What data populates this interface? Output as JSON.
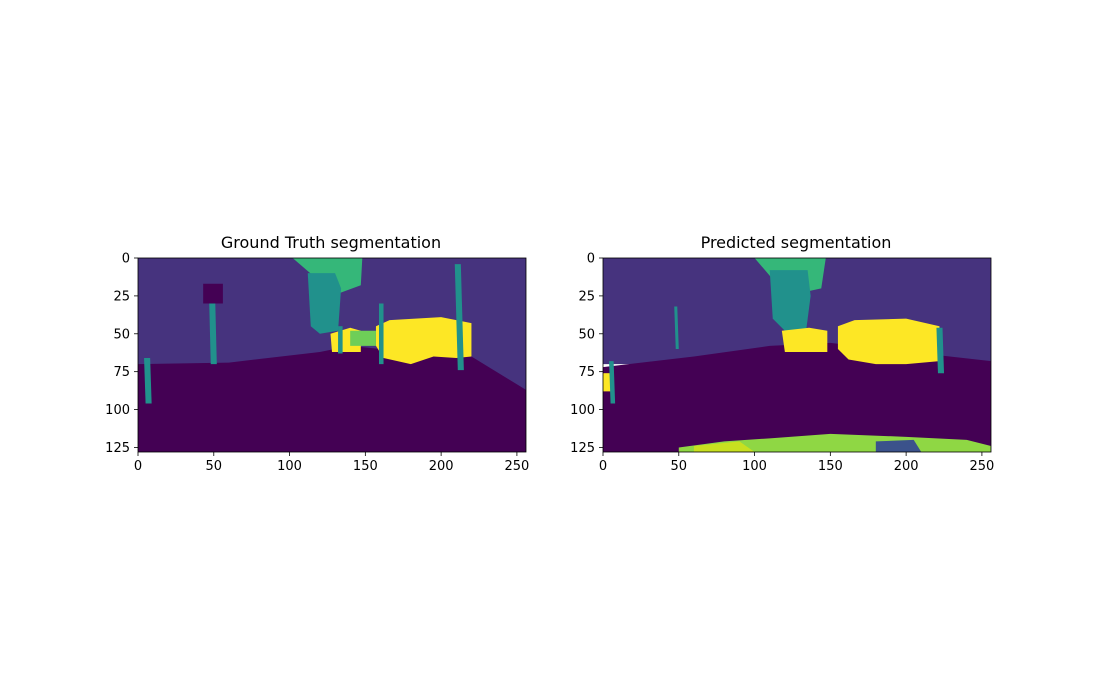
{
  "chart_data": [
    {
      "type": "heatmap",
      "title": "Ground Truth segmentation",
      "xlabel": "",
      "ylabel": "",
      "xlim": [
        0,
        256
      ],
      "ylim": [
        128,
        0
      ],
      "xticks": [
        0,
        50,
        100,
        150,
        200,
        250
      ],
      "yticks": [
        0,
        25,
        50,
        75,
        100,
        125
      ],
      "xtick_labels": [
        "0",
        "50",
        "100",
        "150",
        "200",
        "250"
      ],
      "ytick_labels": [
        "0",
        "25",
        "50",
        "75",
        "100",
        "125"
      ],
      "regions": [
        {
          "label": "sky",
          "color": "#46337e",
          "points": [
            [
              0,
              0
            ],
            [
              256,
              0
            ],
            [
              256,
              87
            ],
            [
              0,
              87
            ]
          ]
        },
        {
          "label": "ground",
          "color": "#440154",
          "points": [
            [
              0,
              70
            ],
            [
              60,
              69
            ],
            [
              120,
              62
            ],
            [
              140,
              58
            ],
            [
              160,
              60
            ],
            [
              220,
              65
            ],
            [
              256,
              87
            ],
            [
              256,
              128
            ],
            [
              0,
              128
            ]
          ]
        },
        {
          "label": "canopy",
          "color": "#35b779",
          "points": [
            [
              102,
              0
            ],
            [
              148,
              0
            ],
            [
              147,
              18
            ],
            [
              128,
              25
            ],
            [
              116,
              12
            ]
          ]
        },
        {
          "label": "trunk",
          "color": "#21918c",
          "points": [
            [
              112,
              10
            ],
            [
              130,
              10
            ],
            [
              134,
              20
            ],
            [
              132,
              48
            ],
            [
              120,
              50
            ],
            [
              114,
              45
            ]
          ]
        },
        {
          "label": "dark-patch",
          "color": "#440154",
          "points": [
            [
              43,
              17
            ],
            [
              56,
              17
            ],
            [
              56,
              30
            ],
            [
              43,
              30
            ]
          ]
        },
        {
          "label": "car-main",
          "color": "#fde725",
          "points": [
            [
              157,
              45
            ],
            [
              166,
              41
            ],
            [
              200,
              39
            ],
            [
              220,
              43
            ],
            [
              220,
              65
            ],
            [
              210,
              66
            ],
            [
              195,
              65
            ],
            [
              180,
              70
            ],
            [
              162,
              66
            ],
            [
              157,
              58
            ]
          ]
        },
        {
          "label": "car-small",
          "color": "#fde725",
          "points": [
            [
              127,
              50
            ],
            [
              140,
              46
            ],
            [
              147,
              48
            ],
            [
              147,
              62
            ],
            [
              128,
              62
            ]
          ]
        },
        {
          "label": "bush",
          "color": "#6ece58",
          "points": [
            [
              140,
              48
            ],
            [
              157,
              48
            ],
            [
              157,
              58
            ],
            [
              140,
              58
            ]
          ]
        },
        {
          "label": "pole-right",
          "color": "#21918c",
          "points": [
            [
              209,
              4
            ],
            [
              213,
              4
            ],
            [
              215,
              74
            ],
            [
              211,
              74
            ]
          ]
        },
        {
          "label": "pole-left",
          "color": "#21918c",
          "points": [
            [
              47,
              30
            ],
            [
              51,
              30
            ],
            [
              52,
              70
            ],
            [
              48,
              70
            ]
          ]
        },
        {
          "label": "pole-near",
          "color": "#21918c",
          "points": [
            [
              4,
              66
            ],
            [
              8,
              66
            ],
            [
              9,
              96
            ],
            [
              5,
              96
            ]
          ]
        },
        {
          "label": "pole-mid",
          "color": "#21918c",
          "points": [
            [
              159,
              30
            ],
            [
              162,
              30
            ],
            [
              162,
              70
            ],
            [
              159,
              70
            ]
          ]
        },
        {
          "label": "pole-center",
          "color": "#21918c",
          "points": [
            [
              132,
              45
            ],
            [
              135,
              45
            ],
            [
              135,
              63
            ],
            [
              132,
              63
            ]
          ]
        }
      ]
    },
    {
      "type": "heatmap",
      "title": "Predicted segmentation",
      "xlabel": "",
      "ylabel": "",
      "xlim": [
        0,
        256
      ],
      "ylim": [
        128,
        0
      ],
      "xticks": [
        0,
        50,
        100,
        150,
        200,
        250
      ],
      "yticks": [
        0,
        25,
        50,
        75,
        100,
        125
      ],
      "xtick_labels": [
        "0",
        "50",
        "100",
        "150",
        "200",
        "250"
      ],
      "ytick_labels": [
        "0",
        "25",
        "50",
        "75",
        "100",
        "125"
      ],
      "regions": [
        {
          "label": "sky",
          "color": "#46337e",
          "points": [
            [
              0,
              0
            ],
            [
              256,
              0
            ],
            [
              256,
              70
            ],
            [
              0,
              70
            ]
          ]
        },
        {
          "label": "ground",
          "color": "#440154",
          "points": [
            [
              0,
              72
            ],
            [
              60,
              65
            ],
            [
              110,
              58
            ],
            [
              150,
              56
            ],
            [
              220,
              64
            ],
            [
              256,
              68
            ],
            [
              256,
              128
            ],
            [
              0,
              128
            ]
          ]
        },
        {
          "label": "canopy",
          "color": "#35b779",
          "points": [
            [
              100,
              0
            ],
            [
              147,
              0
            ],
            [
              144,
              20
            ],
            [
              126,
              24
            ],
            [
              112,
              14
            ]
          ]
        },
        {
          "label": "trunk",
          "color": "#21918c",
          "points": [
            [
              110,
              8
            ],
            [
              135,
              8
            ],
            [
              137,
              25
            ],
            [
              134,
              48
            ],
            [
              120,
              48
            ],
            [
              112,
              40
            ]
          ]
        },
        {
          "label": "car-main",
          "color": "#fde725",
          "points": [
            [
              155,
              45
            ],
            [
              166,
              41
            ],
            [
              200,
              40
            ],
            [
              222,
              45
            ],
            [
              222,
              68
            ],
            [
              200,
              70
            ],
            [
              180,
              70
            ],
            [
              162,
              67
            ],
            [
              155,
              60
            ]
          ]
        },
        {
          "label": "car-small",
          "color": "#fde725",
          "points": [
            [
              118,
              48
            ],
            [
              136,
              46
            ],
            [
              148,
              48
            ],
            [
              148,
              62
            ],
            [
              120,
              62
            ]
          ]
        },
        {
          "label": "pole-right",
          "color": "#21918c",
          "points": [
            [
              220,
              46
            ],
            [
              224,
              46
            ],
            [
              225,
              76
            ],
            [
              221,
              76
            ]
          ]
        },
        {
          "label": "pole-left",
          "color": "#21918c",
          "points": [
            [
              47,
              32
            ],
            [
              49,
              32
            ],
            [
              50,
              60
            ],
            [
              48,
              60
            ]
          ]
        },
        {
          "label": "left-yellow",
          "color": "#fde725",
          "points": [
            [
              0,
              76
            ],
            [
              6,
              76
            ],
            [
              6,
              88
            ],
            [
              0,
              88
            ]
          ]
        },
        {
          "label": "left-pole",
          "color": "#21918c",
          "points": [
            [
              4,
              68
            ],
            [
              7,
              68
            ],
            [
              8,
              96
            ],
            [
              5,
              96
            ]
          ]
        },
        {
          "label": "road-edge-green",
          "color": "#8fd744",
          "points": [
            [
              50,
              125
            ],
            [
              80,
              121
            ],
            [
              110,
              119
            ],
            [
              150,
              116
            ],
            [
              200,
              118
            ],
            [
              240,
              120
            ],
            [
              256,
              124
            ],
            [
              256,
              128
            ],
            [
              50,
              128
            ]
          ]
        },
        {
          "label": "road-edge-yellow",
          "color": "#c8e020",
          "points": [
            [
              60,
              124
            ],
            [
              90,
              121
            ],
            [
              100,
              128
            ],
            [
              60,
              128
            ]
          ]
        },
        {
          "label": "road-edge-dark",
          "color": "#3b528b",
          "points": [
            [
              180,
              121
            ],
            [
              205,
              120
            ],
            [
              210,
              128
            ],
            [
              180,
              128
            ]
          ]
        }
      ]
    }
  ]
}
